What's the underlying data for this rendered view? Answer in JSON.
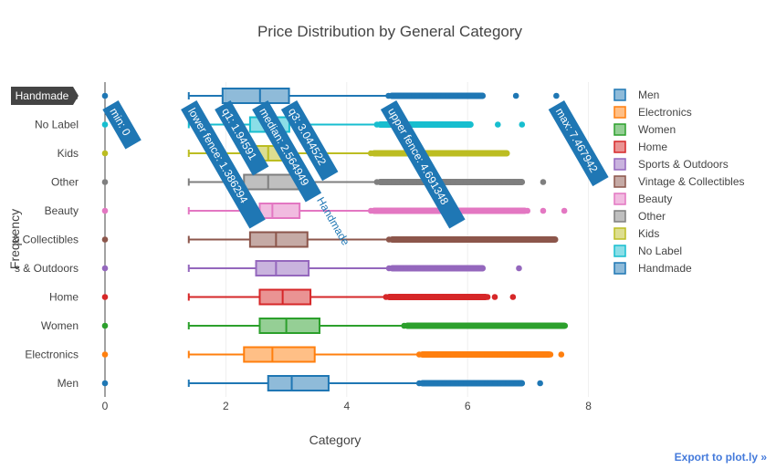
{
  "chart_data": {
    "type": "box",
    "orientation": "horizontal",
    "title": "Price Distribution by General Category",
    "xlabel": "Category",
    "ylabel": "Frequency",
    "xlim": [
      -0.3,
      8.15
    ],
    "x_ticks": [
      0,
      2,
      4,
      6,
      8
    ],
    "x_tick_labels": [
      "0",
      "2",
      "4",
      "6",
      "8"
    ],
    "grid": true,
    "legend_position": "right",
    "series": [
      {
        "name": "Men",
        "color": "#1f77b4",
        "tick_label": "Men",
        "q1": 2.7,
        "median": 3.09,
        "q3": 3.7,
        "lower_fence": 1.386294,
        "upper_fence": 5.2,
        "outlier_range": [
          5.2,
          6.95
        ],
        "far_outliers": [
          7.2
        ],
        "zero_point": 0
      },
      {
        "name": "Electronics",
        "color": "#ff7f0e",
        "tick_label": "Electronics",
        "q1": 2.3,
        "median": 2.77,
        "q3": 3.47,
        "lower_fence": 1.386294,
        "upper_fence": 5.2,
        "outlier_range": [
          5.2,
          7.4
        ],
        "far_outliers": [
          7.55
        ],
        "zero_point": 0
      },
      {
        "name": "Women",
        "color": "#2ca02c",
        "tick_label": "Women",
        "q1": 2.56,
        "median": 3.0,
        "q3": 3.55,
        "lower_fence": 1.386294,
        "upper_fence": 4.95,
        "outlier_range": [
          4.95,
          7.65
        ],
        "far_outliers": [],
        "zero_point": 0
      },
      {
        "name": "Home",
        "color": "#d62728",
        "tick_label": "Home",
        "q1": 2.56,
        "median": 2.94,
        "q3": 3.4,
        "lower_fence": 1.386294,
        "upper_fence": 4.65,
        "outlier_range": [
          4.65,
          6.35
        ],
        "far_outliers": [
          6.45,
          6.75
        ],
        "zero_point": 0
      },
      {
        "name": "Sports & Outdoors",
        "color": "#9467bd",
        "tick_label": "s & Outdoors",
        "q1": 2.5,
        "median": 2.83,
        "q3": 3.37,
        "lower_fence": 1.386294,
        "upper_fence": 4.7,
        "outlier_range": [
          4.7,
          6.3
        ],
        "far_outliers": [
          6.85
        ],
        "zero_point": 0
      },
      {
        "name": "Vintage & Collectibles",
        "color": "#8c564b",
        "tick_label": "& Collectibles",
        "q1": 2.4,
        "median": 2.83,
        "q3": 3.35,
        "lower_fence": 1.386294,
        "upper_fence": 4.7,
        "outlier_range": [
          4.7,
          7.5
        ],
        "far_outliers": [],
        "zero_point": 0
      },
      {
        "name": "Beauty",
        "color": "#e377c2",
        "tick_label": "Beauty",
        "q1": 2.56,
        "median": 2.77,
        "q3": 3.22,
        "lower_fence": 1.386294,
        "upper_fence": 4.4,
        "outlier_range": [
          4.4,
          7.0
        ],
        "far_outliers": [
          7.25,
          7.6
        ],
        "zero_point": 0
      },
      {
        "name": "Other",
        "color": "#7f7f7f",
        "tick_label": "Other",
        "q1": 2.3,
        "median": 2.7,
        "q3": 3.2,
        "lower_fence": 1.386294,
        "upper_fence": 4.5,
        "outlier_range": [
          4.5,
          6.95
        ],
        "far_outliers": [
          7.25
        ],
        "zero_point": 0
      },
      {
        "name": "Kids",
        "color": "#bcbd22",
        "tick_label": "Kids",
        "q1": 2.4,
        "median": 2.7,
        "q3": 3.0,
        "lower_fence": 1.386294,
        "upper_fence": 4.4,
        "outlier_range": [
          4.4,
          6.7
        ],
        "far_outliers": [],
        "zero_point": 0
      },
      {
        "name": "No Label",
        "color": "#17becf",
        "tick_label": "No Label",
        "q1": 2.4,
        "median": 2.65,
        "q3": 3.05,
        "lower_fence": 1.386294,
        "upper_fence": 4.5,
        "outlier_range": [
          4.5,
          6.1
        ],
        "far_outliers": [
          6.5,
          6.9
        ],
        "zero_point": 0
      },
      {
        "name": "Handmade",
        "color": "#1f77b4",
        "tick_label": "Handmade",
        "q1": 1.94591,
        "median": 2.564949,
        "q3": 3.044522,
        "lower_fence": 1.386294,
        "upper_fence": 4.691348,
        "outlier_range": [
          4.691348,
          6.3
        ],
        "far_outliers": [
          6.8,
          7.467942
        ],
        "zero_point": 0
      }
    ],
    "hover": {
      "category": "Handmade",
      "labels": [
        "min: 0",
        "lower fence: 1.386294",
        "q1: 1.94591",
        "median: 2.564949",
        "q3: 3.044522",
        "upper fence: 4.691348",
        "max: 7.467942"
      ],
      "trace_label": "Handmade"
    }
  },
  "export_link": "Export to plot.ly »"
}
